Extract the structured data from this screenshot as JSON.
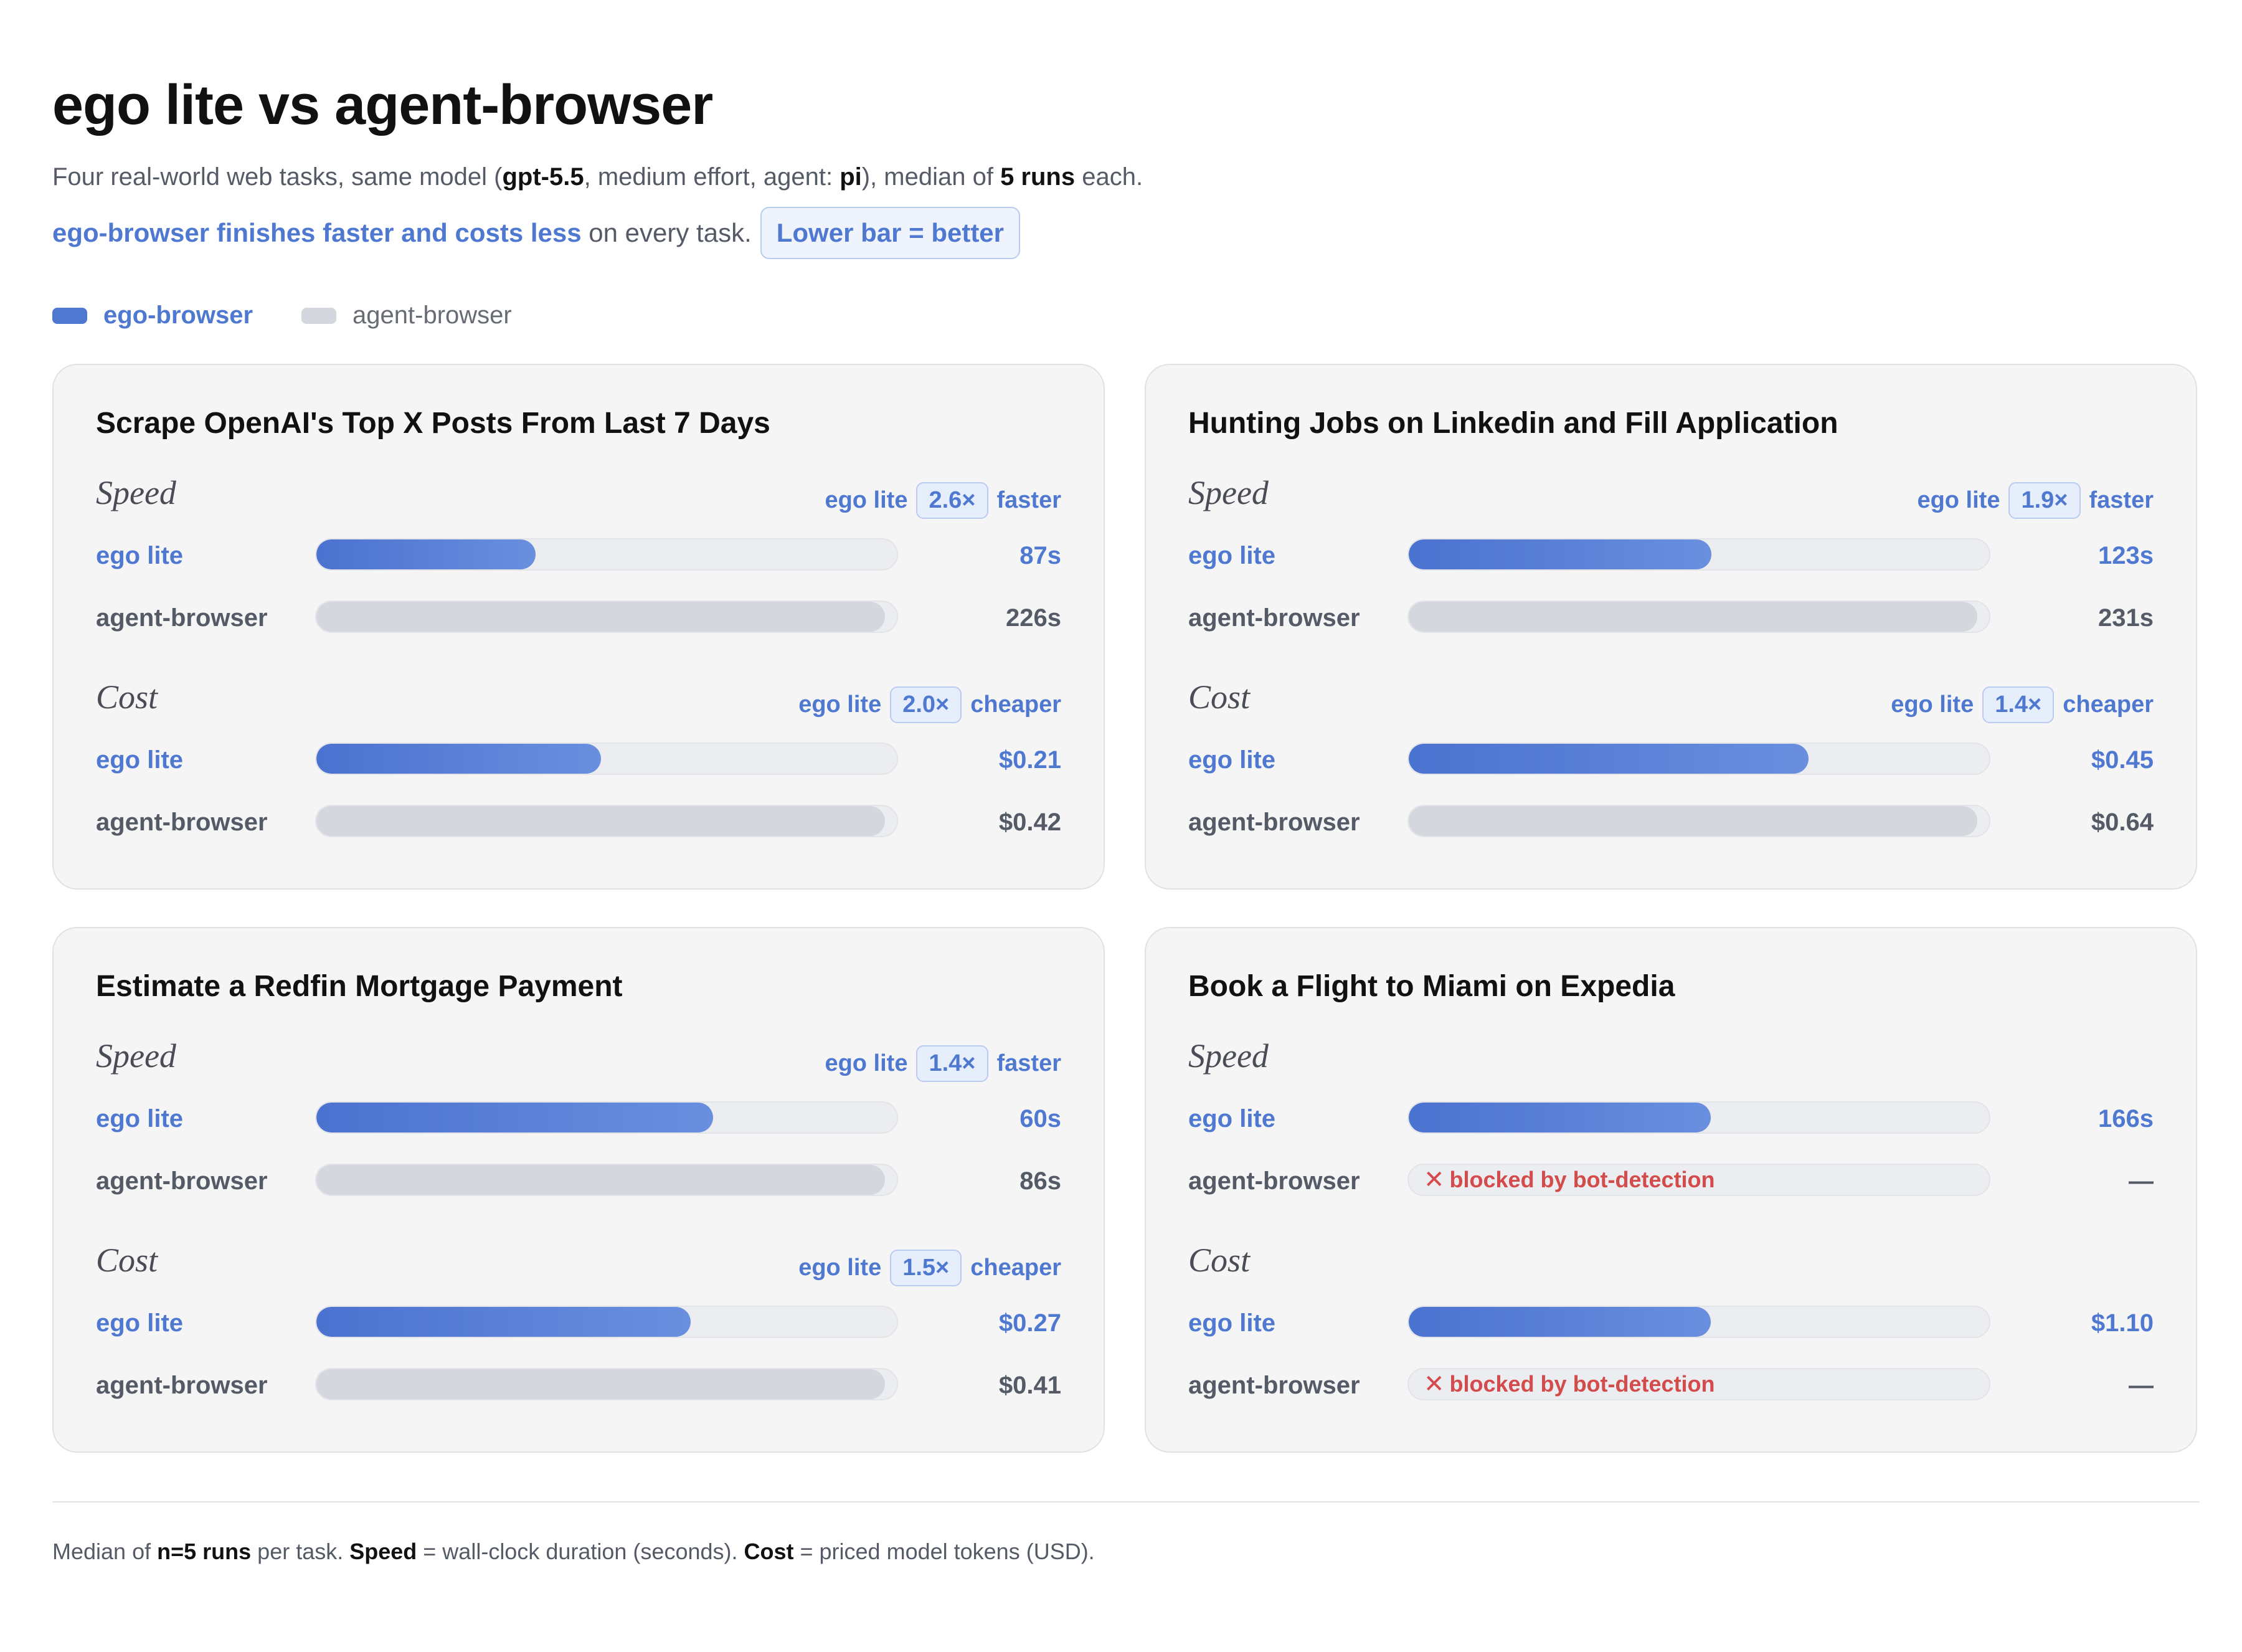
{
  "header": {
    "title": "ego lite vs agent-browser",
    "subtitle": {
      "p1": "Four real-world web tasks, same model (",
      "model": "gpt-5.5",
      "p2": ", medium effort, agent: ",
      "agent": "pi",
      "p3": "), median of ",
      "runs": "5 runs",
      "p4": " each."
    },
    "claim": {
      "highlight": "ego-browser finishes faster and costs less",
      "rest": " on every task.",
      "pill": "Lower bar = better"
    }
  },
  "legend": {
    "ego": "ego-browser",
    "agent": "agent-browser"
  },
  "colors": {
    "ego": "#4f78d1",
    "agent": "#d4d7de",
    "blocked": "#d44b4b"
  },
  "labels": {
    "speed": "Speed",
    "cost": "Cost",
    "ego_row": "ego lite",
    "agent_row": "agent-browser",
    "ratio_prefix": "ego lite",
    "faster": "faster",
    "cheaper": "cheaper"
  },
  "chart_data": [
    {
      "type": "bar",
      "title": "Scrape OpenAI's Top X Posts From Last 7 Days",
      "speed": {
        "ego": 87,
        "agent": 226,
        "ego_label": "87s",
        "agent_label": "226s",
        "ratio": "2.6×"
      },
      "cost": {
        "ego": 0.21,
        "agent": 0.42,
        "ego_label": "$0.21",
        "agent_label": "$0.42",
        "ratio": "2.0×"
      }
    },
    {
      "type": "bar",
      "title": "Hunting Jobs on Linkedin and Fill Application",
      "speed": {
        "ego": 123,
        "agent": 231,
        "ego_label": "123s",
        "agent_label": "231s",
        "ratio": "1.9×"
      },
      "cost": {
        "ego": 0.45,
        "agent": 0.64,
        "ego_label": "$0.45",
        "agent_label": "$0.64",
        "ratio": "1.4×"
      }
    },
    {
      "type": "bar",
      "title": "Estimate a Redfin Mortgage Payment",
      "speed": {
        "ego": 60,
        "agent": 86,
        "ego_label": "60s",
        "agent_label": "86s",
        "ratio": "1.4×"
      },
      "cost": {
        "ego": 0.27,
        "agent": 0.41,
        "ego_label": "$0.27",
        "agent_label": "$0.41",
        "ratio": "1.5×"
      }
    },
    {
      "type": "bar",
      "title": "Book a Flight to Miami on Expedia",
      "speed": {
        "ego": 166,
        "agent": null,
        "ego_label": "166s",
        "agent_label": "—",
        "ratio": null,
        "agent_blocked": "blocked by bot-detection"
      },
      "cost": {
        "ego": 1.1,
        "agent": null,
        "ego_label": "$1.10",
        "agent_label": "—",
        "ratio": null,
        "agent_blocked": "blocked by bot-detection"
      }
    }
  ],
  "footnote": {
    "p1": "Median of ",
    "n": "n=5 runs",
    "p2": " per task. ",
    "speed": "Speed",
    "p3": " = wall-clock duration (seconds). ",
    "cost": "Cost",
    "p4": " = priced model tokens (USD)."
  }
}
